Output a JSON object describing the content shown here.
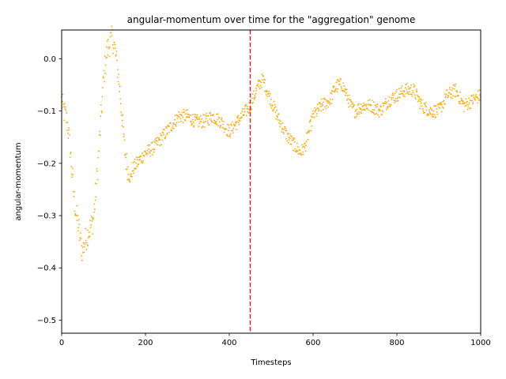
{
  "chart_data": {
    "type": "scatter",
    "title": "angular-momentum over time for the \"aggregation\" genome",
    "xlabel": "Timesteps",
    "ylabel": "angular-momentum",
    "xlim": [
      0,
      1000
    ],
    "ylim": [
      -0.525,
      0.055
    ],
    "x_ticks": [
      0,
      200,
      400,
      600,
      800,
      1000
    ],
    "x_tick_labels": [
      "0",
      "200",
      "400",
      "600",
      "800",
      "1000"
    ],
    "y_ticks": [
      0.0,
      -0.1,
      -0.2,
      -0.3,
      -0.4,
      -0.5
    ],
    "y_tick_labels": [
      "0.0",
      "−0.1",
      "−0.2",
      "−0.3",
      "−0.4",
      "−0.5"
    ],
    "grid": false,
    "point_color": "#FFA500",
    "marker_line": {
      "x": 450,
      "color": "#D62728",
      "style": "dashed"
    },
    "trend": [
      [
        0,
        -0.08
      ],
      [
        5,
        -0.1
      ],
      [
        10,
        -0.11
      ],
      [
        15,
        -0.13
      ],
      [
        20,
        -0.17
      ],
      [
        25,
        -0.22
      ],
      [
        30,
        -0.27
      ],
      [
        35,
        -0.3
      ],
      [
        40,
        -0.32
      ],
      [
        45,
        -0.35
      ],
      [
        50,
        -0.37
      ],
      [
        55,
        -0.35
      ],
      [
        60,
        -0.34
      ],
      [
        65,
        -0.33
      ],
      [
        70,
        -0.32
      ],
      [
        75,
        -0.31
      ],
      [
        80,
        -0.27
      ],
      [
        85,
        -0.22
      ],
      [
        90,
        -0.16
      ],
      [
        95,
        -0.1
      ],
      [
        100,
        -0.04
      ],
      [
        105,
        0.0
      ],
      [
        110,
        0.02
      ],
      [
        115,
        0.03
      ],
      [
        120,
        0.04
      ],
      [
        125,
        0.03
      ],
      [
        130,
        0.0
      ],
      [
        135,
        -0.03
      ],
      [
        140,
        -0.07
      ],
      [
        145,
        -0.12
      ],
      [
        150,
        -0.17
      ],
      [
        155,
        -0.2
      ],
      [
        160,
        -0.22
      ],
      [
        165,
        -0.23
      ],
      [
        170,
        -0.21
      ],
      [
        180,
        -0.2
      ],
      [
        190,
        -0.19
      ],
      [
        200,
        -0.18
      ],
      [
        220,
        -0.17
      ],
      [
        240,
        -0.15
      ],
      [
        260,
        -0.13
      ],
      [
        280,
        -0.11
      ],
      [
        300,
        -0.11
      ],
      [
        320,
        -0.12
      ],
      [
        340,
        -0.12
      ],
      [
        360,
        -0.11
      ],
      [
        380,
        -0.12
      ],
      [
        400,
        -0.14
      ],
      [
        420,
        -0.12
      ],
      [
        440,
        -0.1
      ],
      [
        450,
        -0.09
      ],
      [
        460,
        -0.07
      ],
      [
        470,
        -0.05
      ],
      [
        480,
        -0.04
      ],
      [
        490,
        -0.06
      ],
      [
        500,
        -0.08
      ],
      [
        510,
        -0.1
      ],
      [
        520,
        -0.12
      ],
      [
        540,
        -0.15
      ],
      [
        560,
        -0.17
      ],
      [
        570,
        -0.18
      ],
      [
        580,
        -0.17
      ],
      [
        590,
        -0.14
      ],
      [
        600,
        -0.11
      ],
      [
        620,
        -0.09
      ],
      [
        640,
        -0.08
      ],
      [
        650,
        -0.06
      ],
      [
        660,
        -0.05
      ],
      [
        670,
        -0.05
      ],
      [
        680,
        -0.07
      ],
      [
        690,
        -0.09
      ],
      [
        700,
        -0.1
      ],
      [
        720,
        -0.09
      ],
      [
        740,
        -0.09
      ],
      [
        760,
        -0.1
      ],
      [
        780,
        -0.08
      ],
      [
        800,
        -0.07
      ],
      [
        820,
        -0.06
      ],
      [
        840,
        -0.06
      ],
      [
        860,
        -0.09
      ],
      [
        880,
        -0.1
      ],
      [
        900,
        -0.1
      ],
      [
        920,
        -0.07
      ],
      [
        940,
        -0.06
      ],
      [
        960,
        -0.09
      ],
      [
        980,
        -0.08
      ],
      [
        1000,
        -0.07
      ]
    ]
  }
}
